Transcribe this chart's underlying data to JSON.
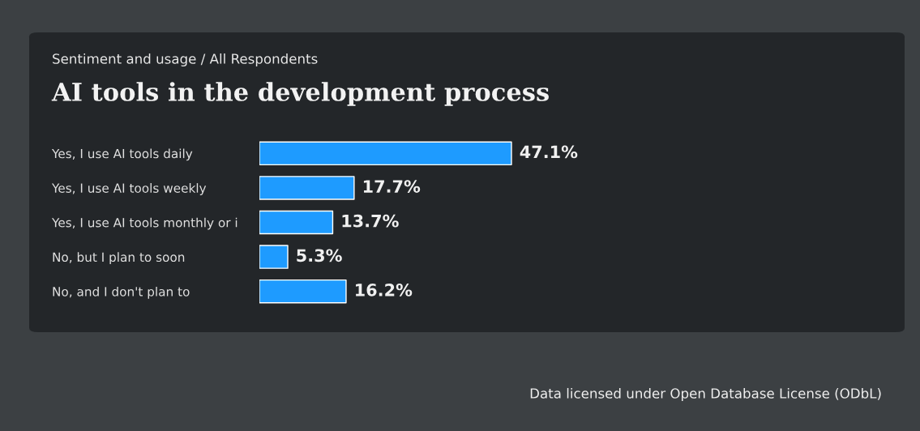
{
  "chart_data": {
    "type": "bar",
    "orientation": "horizontal",
    "subtitle": "Sentiment and usage / All Respondents",
    "title": "AI tools in the development process",
    "categories": [
      "Yes, I use AI tools daily",
      "Yes, I use AI tools weekly",
      "Yes, I use AI tools monthly or i",
      "No, but I plan to soon",
      "No, and I don't plan to"
    ],
    "values": [
      47.1,
      17.7,
      13.7,
      5.3,
      16.2
    ],
    "value_labels": [
      "47.1%",
      "17.7%",
      "13.7%",
      "5.3%",
      "16.2%"
    ],
    "color": "#1e9bff",
    "tick_labels": "y",
    "grid": false,
    "legend": false,
    "annotations": [
      "Data licensed under Open Database License (ODbL)"
    ]
  }
}
